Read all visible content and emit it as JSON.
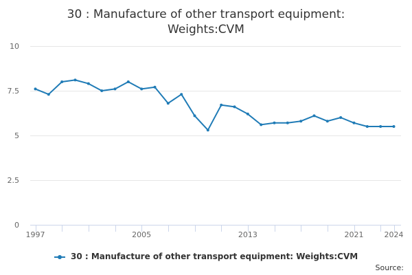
{
  "title": "30 : Manufacture of other transport equipment: Weights:CVM",
  "legend_label": "30 : Manufacture of other transport equipment: Weights:CVM",
  "source_label": "Source:",
  "colors": {
    "series": "#1f7bb6",
    "grid": "#e6e6e6",
    "axis": "#ccd6eb"
  },
  "chart_data": {
    "type": "line",
    "title": "30 : Manufacture of other transport equipment: Weights:CVM",
    "xlabel": "",
    "ylabel": "",
    "x": [
      1997,
      1998,
      1999,
      2000,
      2001,
      2002,
      2003,
      2004,
      2005,
      2006,
      2007,
      2008,
      2009,
      2010,
      2011,
      2012,
      2013,
      2014,
      2015,
      2016,
      2017,
      2018,
      2019,
      2020,
      2021,
      2022,
      2023,
      2024
    ],
    "series": [
      {
        "name": "30 : Manufacture of other transport equipment: Weights:CVM",
        "values": [
          7.6,
          7.3,
          8.0,
          8.1,
          7.9,
          7.5,
          7.6,
          8.0,
          7.6,
          7.7,
          6.8,
          7.3,
          6.1,
          5.3,
          6.7,
          6.6,
          6.2,
          5.6,
          5.7,
          5.7,
          5.8,
          6.1,
          5.8,
          6.0,
          5.7,
          5.5,
          5.5,
          5.5
        ]
      }
    ],
    "x_tick_labels": [
      "1997",
      "2005",
      "2013",
      "2021",
      "2024"
    ],
    "y_ticks": [
      0,
      2.5,
      5,
      7.5,
      10
    ],
    "y_tick_labels": [
      "0",
      "2.5",
      "5",
      "7.5",
      "10"
    ],
    "ylim": [
      0,
      10
    ],
    "xlim": [
      1997,
      2024
    ],
    "grid": true,
    "legend_position": "bottom"
  }
}
